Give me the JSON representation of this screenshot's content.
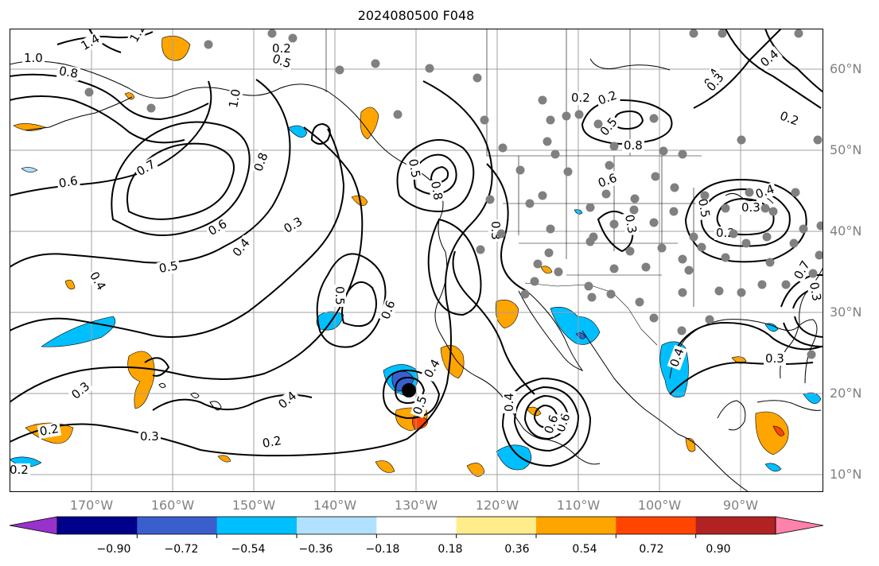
{
  "title": "2024080500 F048",
  "lat_labels": [
    "60°N",
    "50°N",
    "40°N",
    "30°N",
    "20°N",
    "10°N"
  ],
  "lon_labels": [
    "170°W",
    "160°W",
    "150°W",
    "140°W",
    "130°W",
    "120°W",
    "110°W",
    "100°W",
    "90°W"
  ],
  "colorbar": {
    "colors": [
      "#9932cc",
      "#00008b",
      "#3a5fcd",
      "#00bfff",
      "#b0e2ff",
      "#ffffff",
      "#ffec8b",
      "#ffa500",
      "#ff4500",
      "#b22222",
      "#ff82ab"
    ],
    "tick_labels": [
      "−0.90",
      "−0.72",
      "−0.54",
      "−0.36",
      "−0.18",
      "0.18",
      "0.36",
      "0.54",
      "0.72",
      "0.90"
    ]
  },
  "contour_labels": [
    {
      "text": "1.4"
    },
    {
      "text": "1.2"
    },
    {
      "text": "1.0"
    },
    {
      "text": "0.8"
    },
    {
      "text": "1.0"
    },
    {
      "text": "0.2"
    },
    {
      "text": "0.5"
    },
    {
      "text": "0.7"
    },
    {
      "text": "0.6"
    },
    {
      "text": "0.8"
    },
    {
      "text": "0.6"
    },
    {
      "text": "0.4"
    },
    {
      "text": "0.5"
    },
    {
      "text": "0.3"
    },
    {
      "text": "0.4"
    },
    {
      "text": "0.5"
    },
    {
      "text": "0.6"
    },
    {
      "text": "0.5"
    },
    {
      "text": "0.8"
    },
    {
      "text": "0.3"
    },
    {
      "text": "0.3"
    },
    {
      "text": "0.2"
    },
    {
      "text": "0.2"
    },
    {
      "text": "0.4"
    },
    {
      "text": "0.3"
    },
    {
      "text": "0.3"
    },
    {
      "text": "0.2"
    },
    {
      "text": "0.4"
    },
    {
      "text": "0.5"
    },
    {
      "text": "0.6"
    },
    {
      "text": "0.2"
    },
    {
      "text": "0.5"
    },
    {
      "text": "0.8"
    },
    {
      "text": "0.6"
    },
    {
      "text": "0.4"
    },
    {
      "text": "0.3"
    },
    {
      "text": "0.2"
    },
    {
      "text": "0.3"
    },
    {
      "text": "0.5"
    },
    {
      "text": "0.4"
    },
    {
      "text": "0.3"
    },
    {
      "text": "0.4"
    },
    {
      "text": "0.6"
    },
    {
      "text": "0.7"
    },
    {
      "text": "0.3"
    },
    {
      "text": "0.4"
    },
    {
      "text": "0.3"
    },
    {
      "text": "0.4"
    },
    {
      "text": "0.2"
    },
    {
      "text": "0.2"
    }
  ]
}
